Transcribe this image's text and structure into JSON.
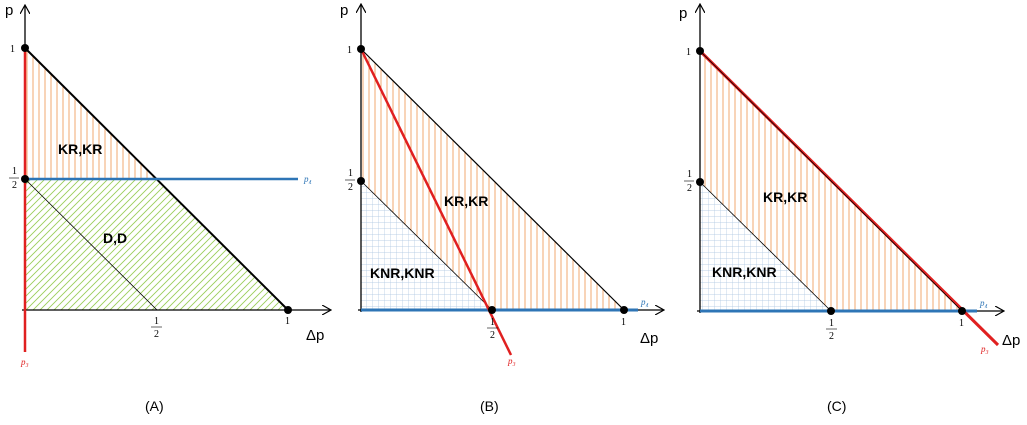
{
  "axes": {
    "y_label": "p",
    "x_label": "Δp"
  },
  "ticks": {
    "one": "1",
    "half_num": "1",
    "half_den": "2"
  },
  "line_labels": {
    "blue": "p₄",
    "red": "p₃"
  },
  "colors": {
    "orange_hatch": "#f0a060",
    "green_hatch": "#9acd5a",
    "blue_grid": "#a9c4e0",
    "blue_line": "#2e75b6",
    "red_line": "#e02020"
  },
  "panels": {
    "a": {
      "caption": "(A)",
      "regions": {
        "top": "KR,KR",
        "bottom": "D,D"
      }
    },
    "b": {
      "caption": "(B)",
      "regions": {
        "top": "KR,KR",
        "bottom": "KNR,KNR"
      }
    },
    "c": {
      "caption": "(C)",
      "regions": {
        "top": "KR,KR",
        "bottom": "KNR,KNR"
      }
    }
  }
}
